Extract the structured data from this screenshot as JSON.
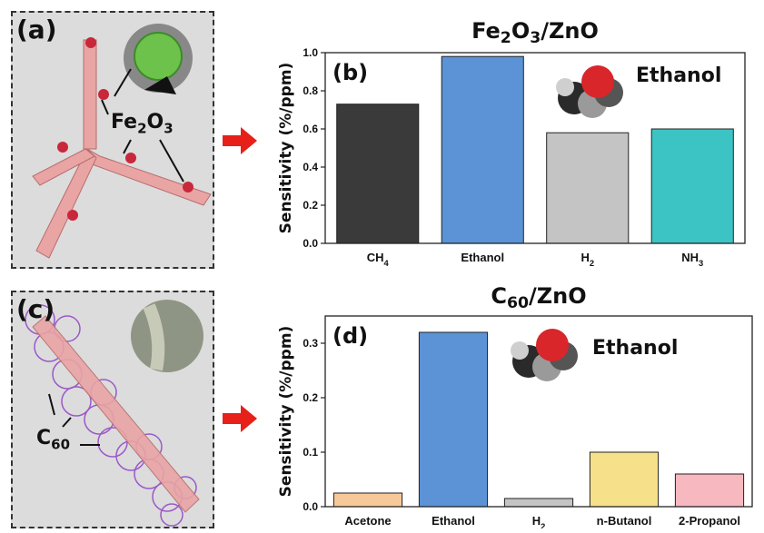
{
  "panels": {
    "a": {
      "label": "(a)",
      "material": "Fe",
      "material_sub1": "2",
      "material_mid": "O",
      "material_sub2": "3"
    },
    "c": {
      "label": "(c)",
      "material": "C",
      "material_sub": "60"
    }
  },
  "colors": {
    "panel_bg": "#dcdcdc",
    "arrow": "#e8201a",
    "rod": "#e9a4a4",
    "particle": "#c8283a",
    "c60": "#9b59c7"
  },
  "icons": [
    "arrow-right-icon",
    "ethanol-molecule-icon",
    "sem-inset-icon"
  ],
  "chart_data": [
    {
      "type": "bar",
      "panel_label": "(b)",
      "title": "Fe2O3/ZnO",
      "title_parts": {
        "base1": "Fe",
        "sub1": "2",
        "base2": "O",
        "sub2": "3",
        "rest": "/ZnO"
      },
      "ylabel": "Sensitivity (%/ppm)",
      "ylim": [
        0,
        1.0
      ],
      "yticks": [
        0.0,
        0.2,
        0.4,
        0.6,
        0.8,
        1.0
      ],
      "ytick_labels": [
        "0.0",
        "0.2",
        "0.4",
        "0.6",
        "0.8",
        "1.0"
      ],
      "annotation": "Ethanol",
      "categories": [
        {
          "base": "CH",
          "sub": "4"
        },
        {
          "base": "Ethanol",
          "sub": ""
        },
        {
          "base": "H",
          "sub": "2"
        },
        {
          "base": "NH",
          "sub": "3"
        }
      ],
      "values": [
        0.73,
        0.98,
        0.58,
        0.6
      ],
      "bar_colors": [
        "#3a3a3a",
        "#5b93d6",
        "#c4c4c4",
        "#3cc4c4"
      ]
    },
    {
      "type": "bar",
      "panel_label": "(d)",
      "title": "C60/ZnO",
      "title_parts": {
        "base1": "C",
        "sub1": "60",
        "base2": "",
        "sub2": "",
        "rest": "/ZnO"
      },
      "ylabel": "Sensitivity (%/ppm)",
      "ylim": [
        0,
        0.35
      ],
      "yticks": [
        0.0,
        0.1,
        0.2,
        0.3
      ],
      "ytick_labels": [
        "0.0",
        "0.1",
        "0.2",
        "0.3"
      ],
      "annotation": "Ethanol",
      "categories": [
        {
          "base": "Acetone",
          "sub": ""
        },
        {
          "base": "Ethanol",
          "sub": ""
        },
        {
          "base": "H",
          "sub": "2"
        },
        {
          "base": "n-Butanol",
          "sub": ""
        },
        {
          "base": "2-Propanol",
          "sub": ""
        }
      ],
      "values": [
        0.025,
        0.32,
        0.015,
        0.1,
        0.06
      ],
      "bar_colors": [
        "#f7c99a",
        "#5b93d6",
        "#c4c4c4",
        "#f7e08a",
        "#f7b8c0"
      ]
    }
  ]
}
